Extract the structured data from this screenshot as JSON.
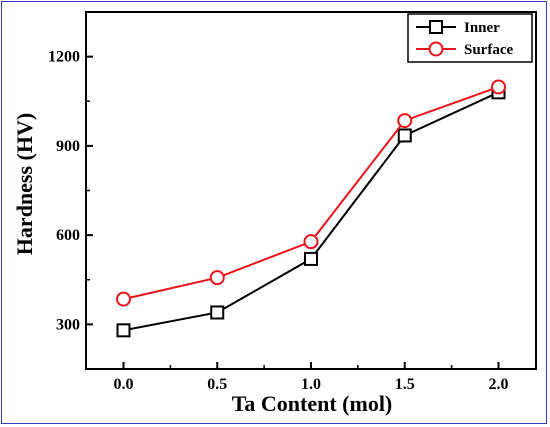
{
  "chart_data": {
    "type": "line",
    "title": "",
    "xlabel": "Ta Content (mol)",
    "ylabel": "Hardness (HV)",
    "xlim": [
      -0.2,
      2.2
    ],
    "ylim": [
      150,
      1350
    ],
    "x_ticks": [
      "0.0",
      "0.5",
      "1.0",
      "1.5",
      "2.0"
    ],
    "y_ticks": [
      "300",
      "600",
      "900",
      "1200"
    ],
    "x": [
      0.0,
      0.5,
      1.0,
      1.5,
      2.0
    ],
    "legend_position": "top-right",
    "grid": false,
    "series": [
      {
        "name": "Inner",
        "values": [
          280,
          340,
          520,
          935,
          1080
        ],
        "errors": [
          12,
          10,
          12,
          15,
          10
        ],
        "color": "#000000",
        "marker": "square"
      },
      {
        "name": "Surface",
        "values": [
          385,
          457,
          578,
          985,
          1098
        ],
        "errors": [
          14,
          12,
          14,
          12,
          10
        ],
        "color": "#e8131b",
        "marker": "circle"
      }
    ]
  }
}
